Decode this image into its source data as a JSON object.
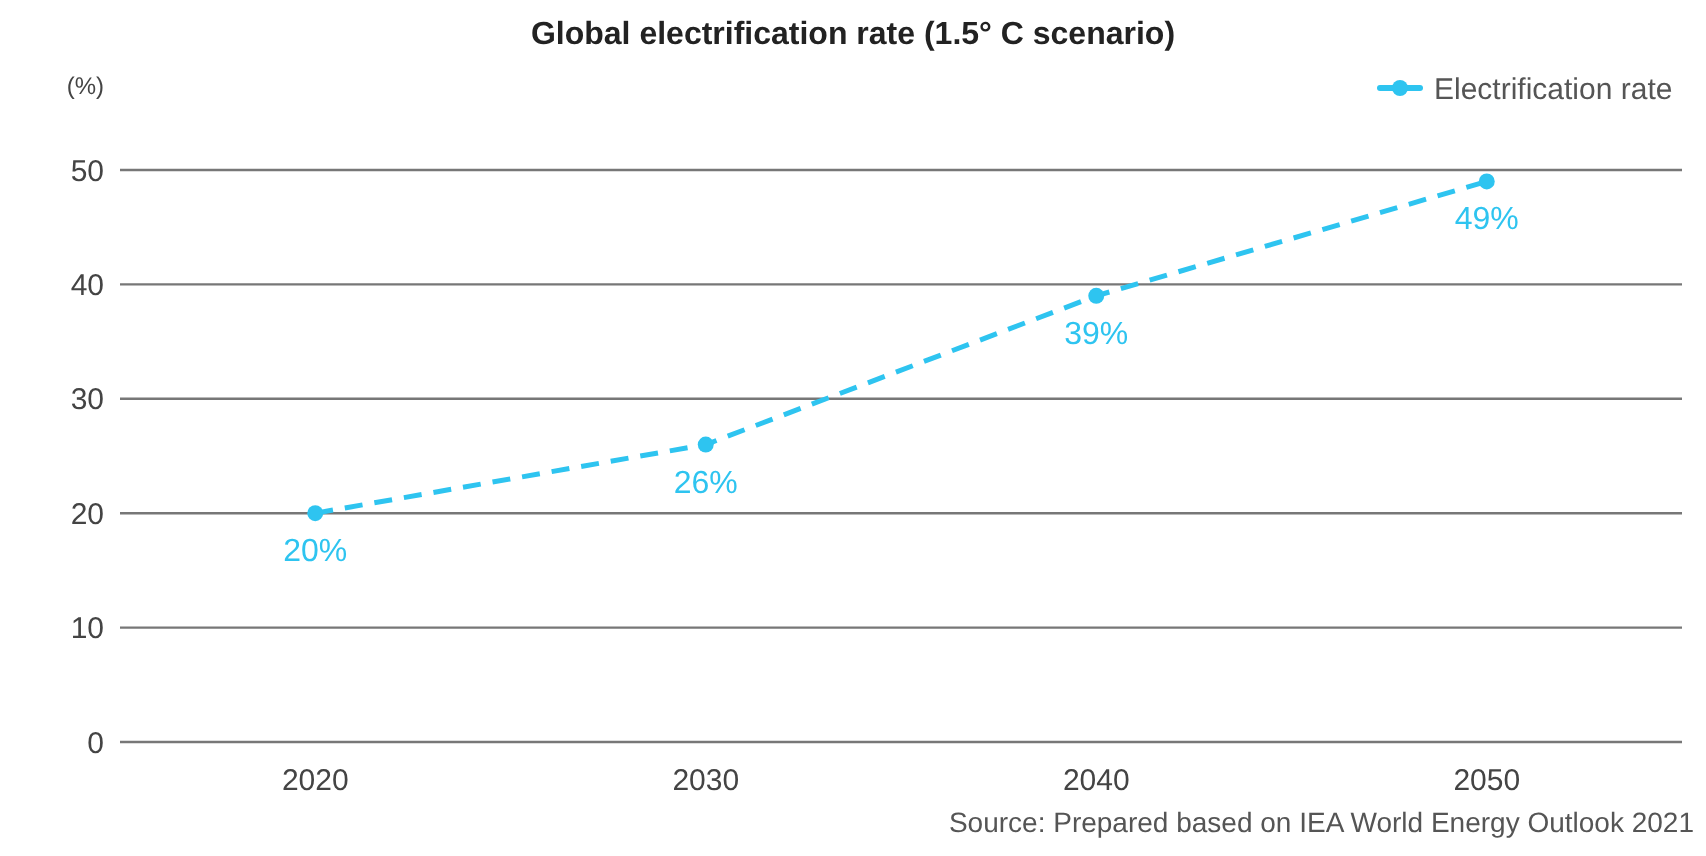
{
  "chart_data": {
    "type": "line",
    "title": "Global electrification rate (1.5° C scenario)",
    "ylabel": "(%)",
    "categories": [
      "2020",
      "2030",
      "2040",
      "2050"
    ],
    "series": [
      {
        "name": "Electrification rate",
        "color": "#2ec4f0",
        "values": [
          20,
          26,
          39,
          49
        ],
        "value_labels": [
          "20%",
          "26%",
          "39%",
          "49%"
        ]
      }
    ],
    "ylim": [
      0,
      50
    ],
    "yticks": [
      0,
      10,
      20,
      30,
      40,
      50
    ],
    "grid": "y",
    "legend": "top right",
    "marker": "circle",
    "line_style": "dashed",
    "annotations": [
      "Source: Prepared based on IEA World Energy Outlook 2021"
    ]
  }
}
